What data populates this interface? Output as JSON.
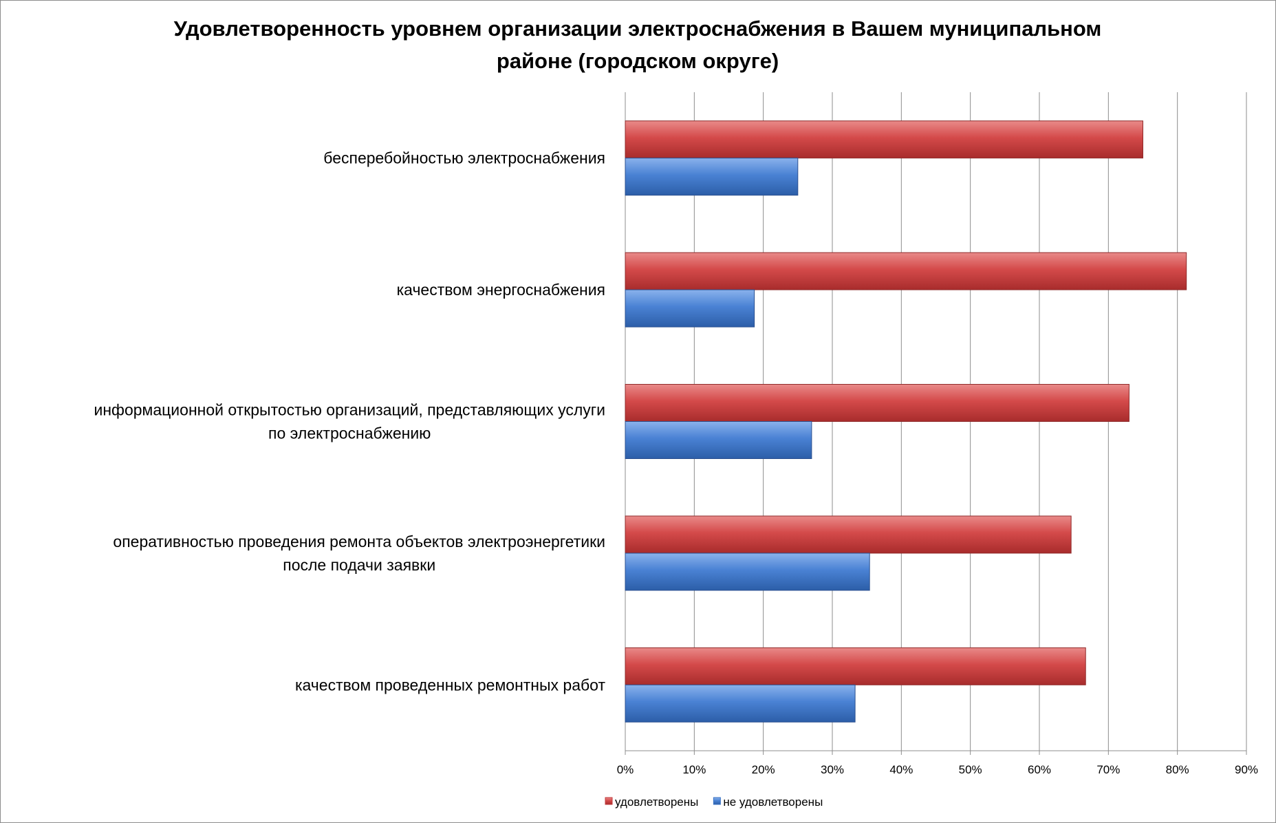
{
  "chart_data": {
    "type": "bar",
    "orientation": "horizontal",
    "title": "Удовлетворенность уровнем организации электроснабжения в Вашем муниципальном районе (городском округе)",
    "title_lines": [
      "Удовлетворенность уровнем организации электроснабжения в Вашем муниципальном",
      "районе (городском округе)"
    ],
    "categories": [
      [
        "бесперебойностью  электроснабжения"
      ],
      [
        "качеством энергоснабжения"
      ],
      [
        "информационной открытостью организаций, представляющих услуги",
        "по электроснабжению"
      ],
      [
        "оперативностью проведения ремонта объектов электроэнергетики",
        "после подачи заявки"
      ],
      [
        "качеством проведенных ремонтных работ"
      ]
    ],
    "series": [
      {
        "name": "удовлетворены",
        "color": "#c0393b",
        "values": [
          75.0,
          81.3,
          73.0,
          64.6,
          66.7
        ]
      },
      {
        "name": "не удовлетворены",
        "color": "#3a73c4",
        "values": [
          25.0,
          18.7,
          27.0,
          35.4,
          33.3
        ]
      }
    ],
    "xlim": [
      0,
      90
    ],
    "xticks": [
      "0%",
      "10%",
      "20%",
      "30%",
      "40%",
      "50%",
      "60%",
      "70%",
      "80%",
      "90%"
    ],
    "xlabel": "",
    "ylabel": "",
    "grid": true,
    "legend_position": "bottom"
  }
}
